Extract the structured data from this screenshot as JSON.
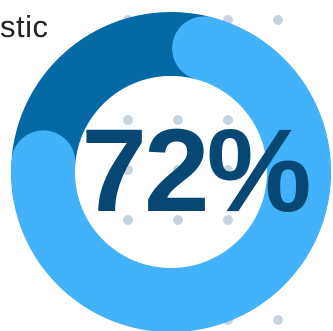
{
  "partial_text": "stic",
  "chart_data": {
    "type": "pie",
    "subtype": "donut",
    "title": "",
    "center_label": "72%",
    "value_percent": 72,
    "remainder_percent": 28,
    "slices": [
      {
        "value": 72,
        "color": "#42b2fb"
      },
      {
        "value": 28,
        "color": "#0569a6"
      }
    ]
  },
  "colors": {
    "highlight": "#42b2fb",
    "track": "#0569a6",
    "label_text": "#064873",
    "dots": "#c7d3df",
    "inner": "#ffffff"
  }
}
